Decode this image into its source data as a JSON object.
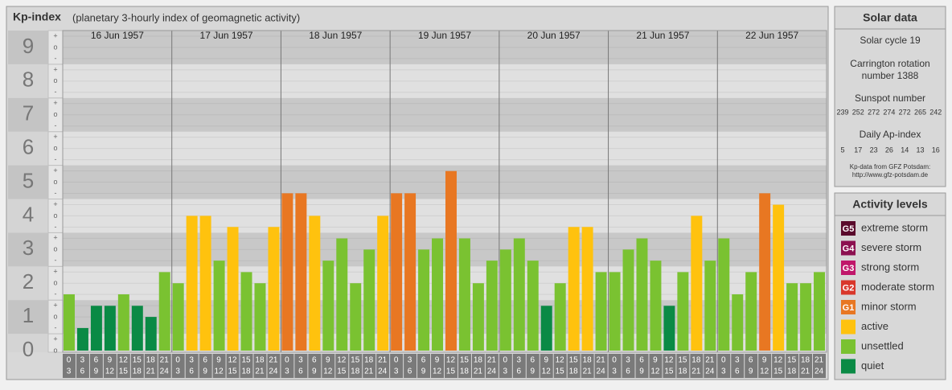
{
  "chart_data": {
    "type": "bar",
    "title": "Kp-index",
    "subtitle": "(planetary 3-hourly index of geomagnetic activity)",
    "ylim": [
      0,
      9.5
    ],
    "yticks": [
      0,
      1,
      2,
      3,
      4,
      5,
      6,
      7,
      8,
      9
    ],
    "minor_tick_labels": [
      "-",
      "o",
      "+"
    ],
    "hour_starts": [
      "0",
      "3",
      "6",
      "9",
      "12",
      "15",
      "18",
      "21"
    ],
    "hour_ends": [
      "3",
      "6",
      "9",
      "12",
      "15",
      "18",
      "21",
      "24"
    ],
    "days": [
      {
        "label": "16 Jun 1957",
        "values": [
          1.67,
          0.67,
          1.33,
          1.33,
          1.67,
          1.33,
          1,
          2.33
        ],
        "colors": [
          "#7ac231",
          "#0a8a45",
          "#0a8a45",
          "#0a8a45",
          "#7ac231",
          "#0a8a45",
          "#0a8a45",
          "#7ac231"
        ]
      },
      {
        "label": "17 Jun 1957",
        "values": [
          2,
          4,
          4,
          2.67,
          3.67,
          2.33,
          2,
          3.67
        ],
        "colors": [
          "#7ac231",
          "#ffc20e",
          "#ffc20e",
          "#7ac231",
          "#ffc20e",
          "#7ac231",
          "#7ac231",
          "#ffc20e"
        ]
      },
      {
        "label": "18 Jun 1957",
        "values": [
          4.67,
          4.67,
          4,
          2.67,
          3.33,
          2,
          3,
          4
        ],
        "colors": [
          "#e87722",
          "#e87722",
          "#ffc20e",
          "#7ac231",
          "#7ac231",
          "#7ac231",
          "#7ac231",
          "#ffc20e"
        ]
      },
      {
        "label": "19 Jun 1957",
        "values": [
          4.67,
          4.67,
          3,
          3.33,
          5.33,
          3.33,
          2,
          2.67
        ],
        "colors": [
          "#e87722",
          "#e87722",
          "#7ac231",
          "#7ac231",
          "#e87722",
          "#7ac231",
          "#7ac231",
          "#7ac231"
        ]
      },
      {
        "label": "20 Jun 1957",
        "values": [
          3,
          3.33,
          2.67,
          1.33,
          2,
          3.67,
          3.67,
          2.33
        ],
        "colors": [
          "#7ac231",
          "#7ac231",
          "#7ac231",
          "#0a8a45",
          "#7ac231",
          "#ffc20e",
          "#ffc20e",
          "#7ac231"
        ]
      },
      {
        "label": "21 Jun 1957",
        "values": [
          2.33,
          3,
          3.33,
          2.67,
          1.33,
          2.33,
          4,
          2.67
        ],
        "colors": [
          "#7ac231",
          "#7ac231",
          "#7ac231",
          "#7ac231",
          "#0a8a45",
          "#7ac231",
          "#ffc20e",
          "#7ac231"
        ]
      },
      {
        "label": "22 Jun 1957",
        "values": [
          3.33,
          1.67,
          2.33,
          4.67,
          4.33,
          2,
          2,
          2.33
        ],
        "colors": [
          "#7ac231",
          "#7ac231",
          "#7ac231",
          "#e87722",
          "#ffc20e",
          "#7ac231",
          "#7ac231",
          "#7ac231"
        ]
      }
    ],
    "legend": {
      "title": "Activity levels",
      "items": [
        {
          "badge": "G5",
          "label": "extreme storm",
          "color": "#5a0a2c"
        },
        {
          "badge": "G4",
          "label": "severe storm",
          "color": "#8c1050"
        },
        {
          "badge": "G3",
          "label": "strong storm",
          "color": "#c0176a"
        },
        {
          "badge": "G2",
          "label": "moderate storm",
          "color": "#d9372b"
        },
        {
          "badge": "G1",
          "label": "minor storm",
          "color": "#e87722"
        },
        {
          "label": "active",
          "color": "#ffc20e"
        },
        {
          "label": "unsettled",
          "color": "#7ac231"
        },
        {
          "label": "quiet",
          "color": "#0a8a45"
        }
      ]
    }
  },
  "solar_data": {
    "title": "Solar data",
    "cycle": "Solar cycle 19",
    "carrington": [
      "Carrington rotation",
      "number 1388"
    ],
    "sunspot_title": "Sunspot number",
    "sunspot": [
      239,
      252,
      272,
      274,
      272,
      265,
      242
    ],
    "ap_title": "Daily Ap-index",
    "ap": [
      5,
      17,
      23,
      26,
      14,
      13,
      16
    ],
    "credit": [
      "Kp-data from GFZ Potsdam:",
      "http://www.gfz-potsdam.de"
    ]
  }
}
